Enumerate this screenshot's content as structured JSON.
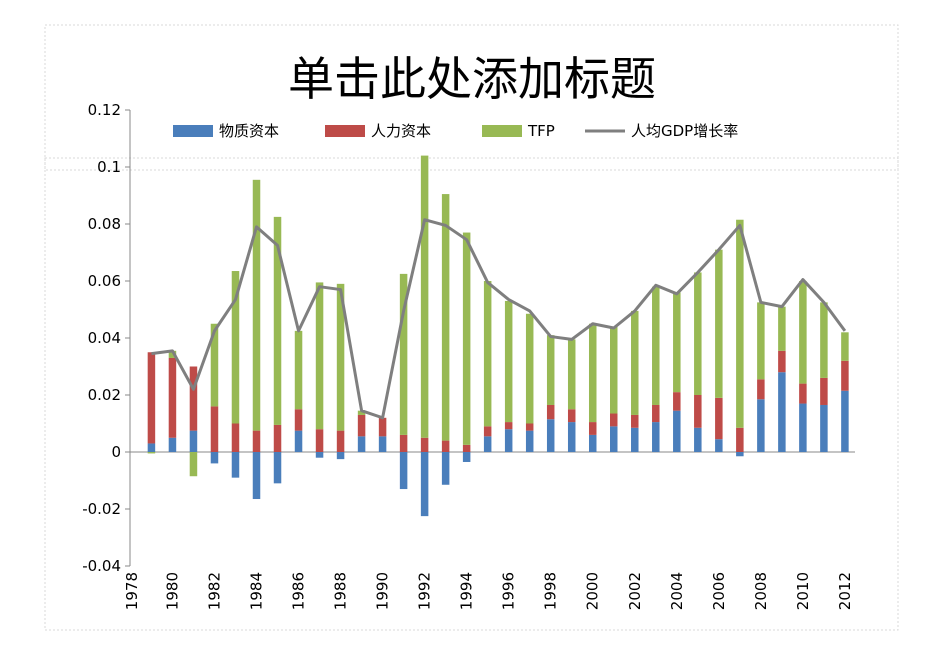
{
  "chart_data": {
    "type": "bar",
    "stacked": true,
    "title": "单击此处添加标题",
    "xlabel": "",
    "ylabel": "",
    "ylim": [
      -0.04,
      0.12
    ],
    "yticks": [
      "-0.04",
      "-0.02",
      "0",
      "0.02",
      "0.04",
      "0.06",
      "0.08",
      "0.1",
      "0.12"
    ],
    "ytick_values": [
      -0.04,
      -0.02,
      0,
      0.02,
      0.04,
      0.06,
      0.08,
      0.1,
      0.12
    ],
    "x": [
      1978,
      1979,
      1980,
      1981,
      1982,
      1983,
      1984,
      1985,
      1986,
      1987,
      1988,
      1989,
      1990,
      1991,
      1992,
      1993,
      1994,
      1995,
      1996,
      1997,
      1998,
      1999,
      2000,
      2001,
      2002,
      2003,
      2004,
      2005,
      2006,
      2007,
      2008,
      2009,
      2010,
      2011,
      2012
    ],
    "xtick_labels": [
      "1978",
      "1980",
      "1982",
      "1984",
      "1986",
      "1988",
      "1990",
      "1992",
      "1994",
      "1996",
      "1998",
      "2000",
      "2002",
      "2004",
      "2006",
      "2008",
      "2010",
      "2012"
    ],
    "legend_position": "top",
    "series": [
      {
        "name": "物质资本",
        "kind": "bar",
        "color": "#4a7ebb",
        "values": [
          null,
          0.003,
          0.005,
          0.0075,
          -0.004,
          -0.009,
          -0.0165,
          -0.011,
          0.0075,
          -0.002,
          -0.0025,
          0.0055,
          0.0055,
          -0.013,
          -0.0225,
          -0.0115,
          -0.0035,
          0.0055,
          0.008,
          0.0075,
          0.0115,
          0.0105,
          0.006,
          0.009,
          0.0085,
          0.0105,
          0.0145,
          0.0085,
          0.0045,
          -0.0015,
          0.0185,
          0.028,
          0.017,
          0.0165,
          0.0215
        ]
      },
      {
        "name": "人力资本",
        "kind": "bar",
        "color": "#be4b48",
        "values": [
          null,
          0.032,
          0.028,
          0.0225,
          0.016,
          0.01,
          0.0075,
          0.0095,
          0.0075,
          0.008,
          0.0075,
          0.0075,
          0.0065,
          0.006,
          0.005,
          0.004,
          0.0025,
          0.0035,
          0.0025,
          0.0025,
          0.005,
          0.0045,
          0.0045,
          0.0045,
          0.0045,
          0.006,
          0.0065,
          0.0115,
          0.0145,
          0.0085,
          0.007,
          0.0075,
          0.007,
          0.0095,
          0.0105
        ]
      },
      {
        "name": "TFP",
        "kind": "bar",
        "color": "#98b954",
        "values": [
          null,
          -0.0005,
          0.0025,
          -0.0085,
          0.029,
          0.0535,
          0.088,
          0.073,
          0.0275,
          0.0515,
          0.0515,
          0.0015,
          0.0,
          0.0565,
          0.099,
          0.0865,
          0.0745,
          0.051,
          0.0425,
          0.0385,
          0.0245,
          0.0245,
          0.0345,
          0.0305,
          0.0365,
          0.0415,
          0.035,
          0.043,
          0.052,
          0.073,
          0.027,
          0.0155,
          0.036,
          0.0265,
          0.01
        ]
      },
      {
        "name": "人均GDP增长率",
        "kind": "line",
        "color": "#7f7f7f",
        "values": [
          null,
          0.0345,
          0.0355,
          0.022,
          0.0425,
          0.0535,
          0.079,
          0.0725,
          0.0425,
          0.058,
          0.057,
          0.0145,
          0.012,
          0.0495,
          0.0815,
          0.0795,
          0.0745,
          0.0595,
          0.0535,
          0.0495,
          0.0405,
          0.0395,
          0.045,
          0.0435,
          0.0495,
          0.0585,
          0.0555,
          0.063,
          0.071,
          0.0795,
          0.0525,
          0.051,
          0.0605,
          0.0525,
          0.0425
        ]
      }
    ]
  }
}
